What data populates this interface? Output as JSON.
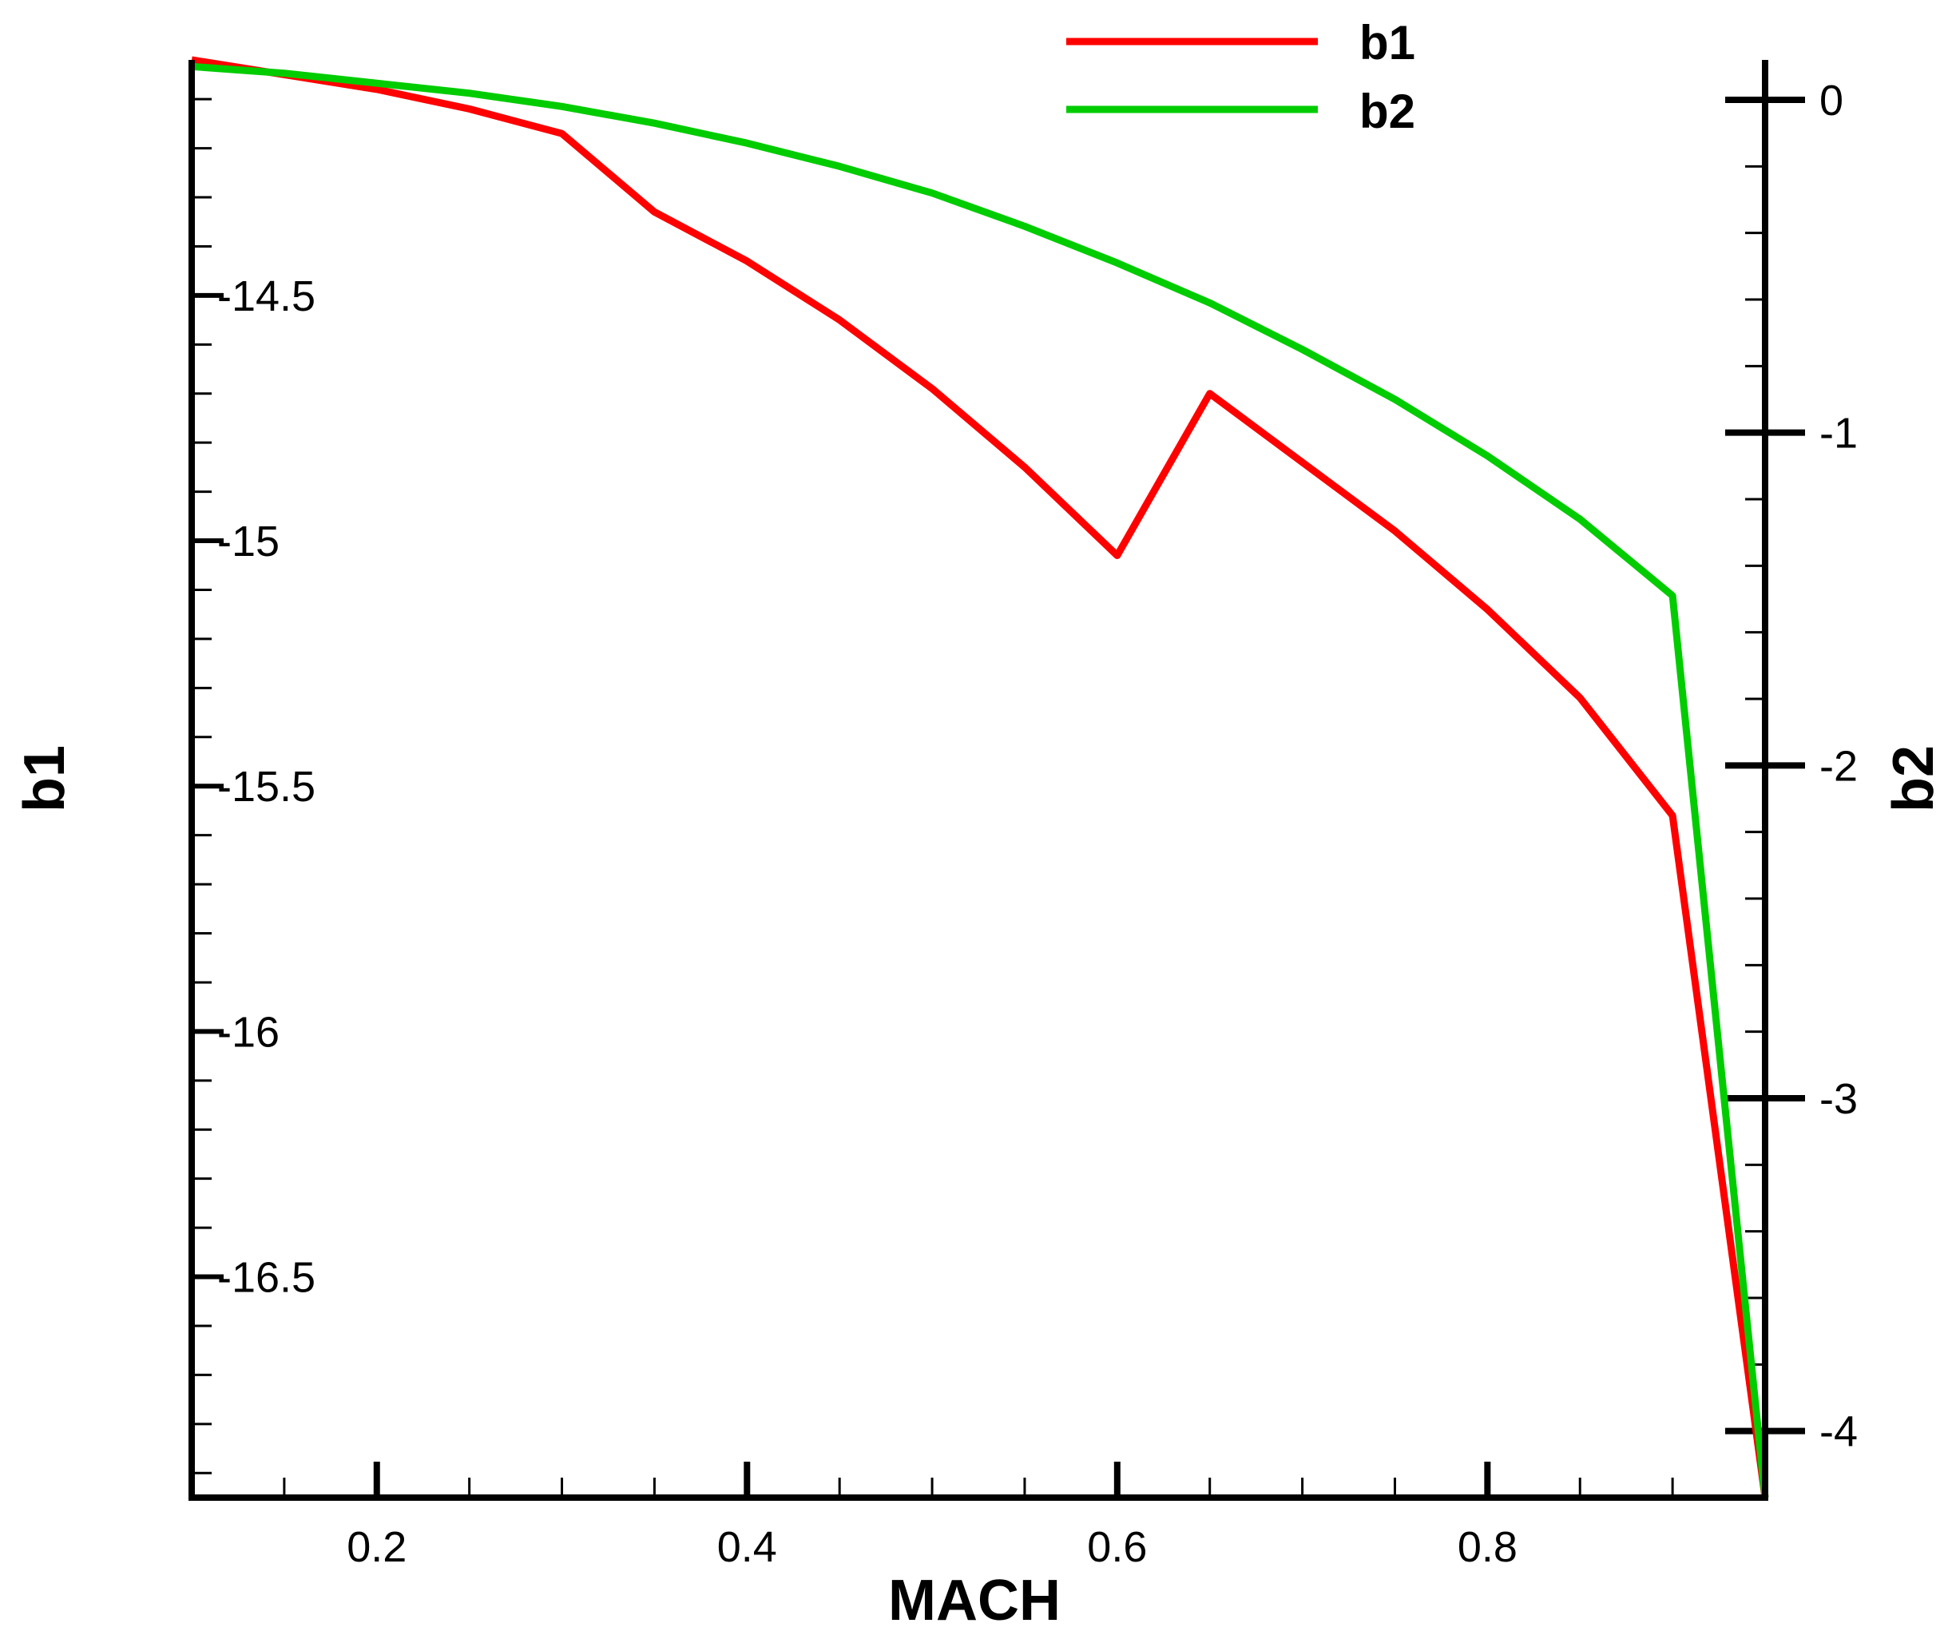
{
  "chart_data": {
    "type": "line",
    "xlabel": "MACH",
    "ylabel_left": "b1",
    "ylabel_right": "b2",
    "xlim": [
      0.1,
      0.95
    ],
    "ylim_left": [
      -16.95,
      -14.02
    ],
    "ylim_right": [
      -4.2,
      0.12
    ],
    "x_ticks": [
      0.2,
      0.4,
      0.6,
      0.8
    ],
    "x_tick_labels": [
      "0.2",
      "0.4",
      "0.6",
      "0.8"
    ],
    "y_left_ticks": [
      -14.5,
      -15,
      -15.5,
      -16,
      -16.5
    ],
    "y_left_tick_labels": [
      "-14.5",
      "-15",
      "-15.5",
      "-16",
      "-16.5"
    ],
    "y_right_ticks": [
      0,
      -1,
      -2,
      -3,
      -4
    ],
    "y_right_tick_labels": [
      "0",
      "-1",
      "-2",
      "-3",
      "-4"
    ],
    "legend_position": "top-center",
    "series": [
      {
        "name": "b1",
        "axis": "left",
        "color": "#ff0000",
        "x": [
          0.1,
          0.15,
          0.2,
          0.25,
          0.3,
          0.35,
          0.4,
          0.45,
          0.5,
          0.55,
          0.6,
          0.65,
          0.7,
          0.75,
          0.8,
          0.85,
          0.9,
          0.95
        ],
        "y": [
          -14.02,
          -14.05,
          -14.08,
          -14.12,
          -14.17,
          -14.33,
          -14.43,
          -14.55,
          -14.69,
          -14.85,
          -15.03,
          -14.7,
          -14.84,
          -14.98,
          -15.14,
          -15.32,
          -15.56,
          -16.95
        ]
      },
      {
        "name": "b2",
        "axis": "right",
        "color": "#00cc00",
        "x": [
          0.1,
          0.15,
          0.2,
          0.25,
          0.3,
          0.35,
          0.4,
          0.45,
          0.5,
          0.55,
          0.6,
          0.65,
          0.7,
          0.75,
          0.8,
          0.85,
          0.9,
          0.95
        ],
        "y": [
          0.1,
          0.08,
          0.05,
          0.02,
          -0.02,
          -0.07,
          -0.13,
          -0.2,
          -0.28,
          -0.38,
          -0.49,
          -0.61,
          -0.75,
          -0.9,
          -1.07,
          -1.26,
          -1.49,
          -4.2
        ]
      }
    ]
  }
}
